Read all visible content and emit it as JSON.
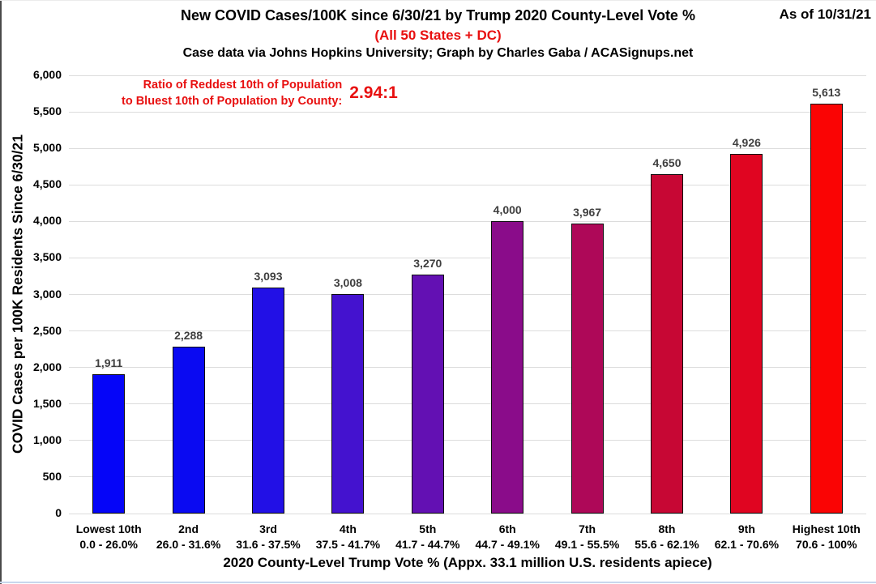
{
  "header": {
    "title": "New COVID Cases/100K since 6/30/21 by Trump 2020 County-Level Vote %",
    "subtitle": "(All 50 States + DC)",
    "credit": "Case data via Johns Hopkins University; Graph by Charles Gaba / ACASignups.net",
    "as_of": "As of 10/31/21"
  },
  "annotation": {
    "line1": "Ratio of Reddest 10th of Population",
    "line2": "to Bluest 10th of Population by County:",
    "ratio": "2.94:1"
  },
  "chart_data": {
    "type": "bar",
    "title": "New COVID Cases/100K since 6/30/21 by Trump 2020 County-Level Vote %",
    "categories": [
      "Lowest 10th",
      "2nd",
      "3rd",
      "4th",
      "5th",
      "6th",
      "7th",
      "8th",
      "9th",
      "Highest 10th"
    ],
    "category_ranges": [
      "0.0 - 26.0%",
      "26.0 - 31.6%",
      "31.6 - 37.5%",
      "37.5 - 41.7%",
      "41.7 - 44.7%",
      "44.7 - 49.1%",
      "49.1 - 55.5%",
      "55.6 - 62.1%",
      "62.1 - 70.6%",
      "70.6 - 100%"
    ],
    "values": [
      1911,
      2288,
      3093,
      3008,
      3270,
      4000,
      3967,
      4650,
      4926,
      5613
    ],
    "value_labels": [
      "1,911",
      "2,288",
      "3,093",
      "3,008",
      "3,270",
      "4,000",
      "3,967",
      "4,650",
      "4,926",
      "5,613"
    ],
    "bar_colors": [
      "#0505f8",
      "#0a0af2",
      "#2210e6",
      "#4412cf",
      "#6310b3",
      "#8a0c8a",
      "#ae0858",
      "#c70734",
      "#e00521",
      "#fa0404"
    ],
    "xlabel": "2020 County-Level Trump Vote % (Appx. 33.1 million U.S. residents apiece)",
    "ylabel": "COVID Cases per 100K Residents Since 6/30/21",
    "ylim": [
      0,
      6000
    ],
    "ytick_step": 500,
    "yticks": [
      "0",
      "500",
      "1,000",
      "1,500",
      "2,000",
      "2,500",
      "3,000",
      "3,500",
      "4,000",
      "4,500",
      "5,000",
      "5,500",
      "6,000"
    ],
    "grid": true,
    "legend": "none"
  },
  "colors": {
    "text_red": "#e81010",
    "value_label_gray": "#3f3f3f",
    "gridline": "#dcdcdc"
  }
}
